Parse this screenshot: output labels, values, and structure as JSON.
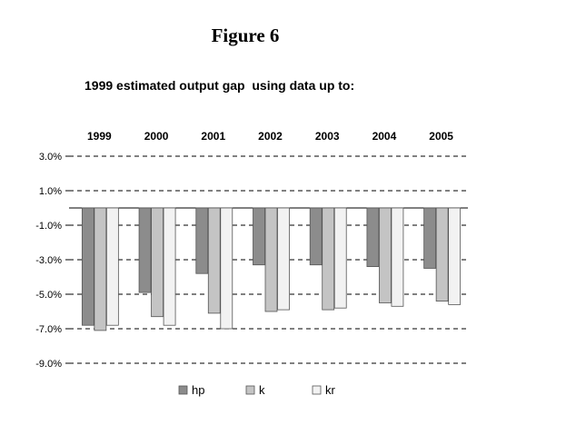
{
  "figure_label": "Figure 6",
  "chart_data": {
    "type": "bar",
    "title": "1999 estimated output gap  using data up to:",
    "categories": [
      "1999",
      "2000",
      "2001",
      "2002",
      "2003",
      "2004",
      "2005"
    ],
    "series": [
      {
        "name": "hp",
        "color": "#8c8c8c",
        "values": [
          -6.8,
          -4.9,
          -3.8,
          -3.3,
          -3.3,
          -3.4,
          -3.5
        ]
      },
      {
        "name": "k",
        "color": "#c4c4c4",
        "values": [
          -7.1,
          -6.3,
          -6.1,
          -6.0,
          -5.9,
          -5.5,
          -5.4
        ]
      },
      {
        "name": "kr",
        "color": "#f2f2f2",
        "values": [
          -6.8,
          -6.8,
          -7.0,
          -5.9,
          -5.8,
          -5.7,
          -5.6
        ]
      }
    ],
    "y_ticks": [
      "3.0%",
      "1.0%",
      "-1.0%",
      "-3.0%",
      "-5.0%",
      "-7.0%",
      "-9.0%"
    ],
    "ylim": [
      -9,
      3
    ],
    "gridlines": "dashed horizontal",
    "category_labels_position": "top",
    "legend_position": "bottom"
  }
}
